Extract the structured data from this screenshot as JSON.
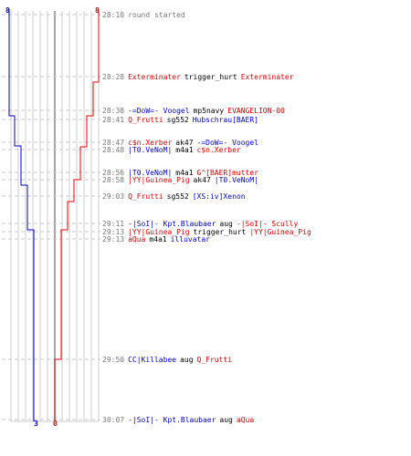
{
  "counts": {
    "blue_start": "8",
    "red_start": "8",
    "blue_end": "3",
    "red_end": "0"
  },
  "colors": {
    "team_blue": "#0000cc",
    "team_red": "#dd0000",
    "time": "#777777",
    "text": "#000000"
  },
  "events": [
    {
      "time": "28:10",
      "parts": [
        {
          "text": "round started",
          "color": "gray"
        }
      ]
    },
    {
      "time": "28:28",
      "parts": [
        {
          "text": "Exterminater",
          "color": "red"
        },
        {
          "text": "trigger_hurt",
          "color": "black"
        },
        {
          "text": "Exterminater",
          "color": "red"
        }
      ]
    },
    {
      "time": "28:38",
      "parts": [
        {
          "text": "-=DoW=- Voogel",
          "color": "blue"
        },
        {
          "text": "mp5navy",
          "color": "black"
        },
        {
          "text": "EVANGELION-00",
          "color": "red"
        }
      ]
    },
    {
      "time": "28:41",
      "parts": [
        {
          "text": "Q_Frutti",
          "color": "red"
        },
        {
          "text": "sg552",
          "color": "black"
        },
        {
          "text": "Hubschrau[BAER]",
          "color": "blue"
        }
      ]
    },
    {
      "time": "28:47",
      "parts": [
        {
          "text": "c$n.Xerber",
          "color": "red"
        },
        {
          "text": "ak47",
          "color": "black"
        },
        {
          "text": "-=DoW=- Voogel",
          "color": "blue"
        }
      ]
    },
    {
      "time": "28:48",
      "parts": [
        {
          "text": "|T0.VeNoM|",
          "color": "blue"
        },
        {
          "text": "m4a1",
          "color": "black"
        },
        {
          "text": "c$n.Xerber",
          "color": "red"
        }
      ]
    },
    {
      "time": "28:56",
      "parts": [
        {
          "text": "|T0.VeNoM|",
          "color": "blue"
        },
        {
          "text": "m4a1",
          "color": "black"
        },
        {
          "text": "G^[BAER]mutter",
          "color": "red"
        }
      ]
    },
    {
      "time": "28:58",
      "parts": [
        {
          "text": "|YY|Guinea_Pig",
          "color": "red"
        },
        {
          "text": "ak47",
          "color": "black"
        },
        {
          "text": "|T0.VeNoM|",
          "color": "blue"
        }
      ]
    },
    {
      "time": "29:03",
      "parts": [
        {
          "text": "Q_Frutti",
          "color": "red"
        },
        {
          "text": "sg552",
          "color": "black"
        },
        {
          "text": "[XS:iv]Xenon",
          "color": "blue"
        }
      ]
    },
    {
      "time": "29:11",
      "parts": [
        {
          "text": "-|SoI|- Kpt.Blaubaer",
          "color": "blue"
        },
        {
          "text": "aug",
          "color": "black"
        },
        {
          "text": "-|SoI|- Scully",
          "color": "red"
        }
      ]
    },
    {
      "time": "29:13",
      "parts": [
        {
          "text": "|YY|Guinea_Pig",
          "color": "red"
        },
        {
          "text": "trigger_hurt",
          "color": "black"
        },
        {
          "text": "|YY|Guinea_Pig",
          "color": "red"
        }
      ]
    },
    {
      "time": "29:13",
      "parts": [
        {
          "text": "aQua",
          "color": "red"
        },
        {
          "text": "m4a1",
          "color": "black"
        },
        {
          "text": "illuvatar",
          "color": "blue"
        }
      ]
    },
    {
      "time": "29:50",
      "parts": [
        {
          "text": "CC|Killabee",
          "color": "blue"
        },
        {
          "text": "aug",
          "color": "black"
        },
        {
          "text": "Q_Frutti",
          "color": "red"
        }
      ]
    },
    {
      "time": "30:07",
      "parts": [
        {
          "text": "-|SoI|- Kpt.Blaubaer",
          "color": "blue"
        },
        {
          "text": "aug",
          "color": "black"
        },
        {
          "text": "aQua",
          "color": "red"
        }
      ]
    }
  ]
}
